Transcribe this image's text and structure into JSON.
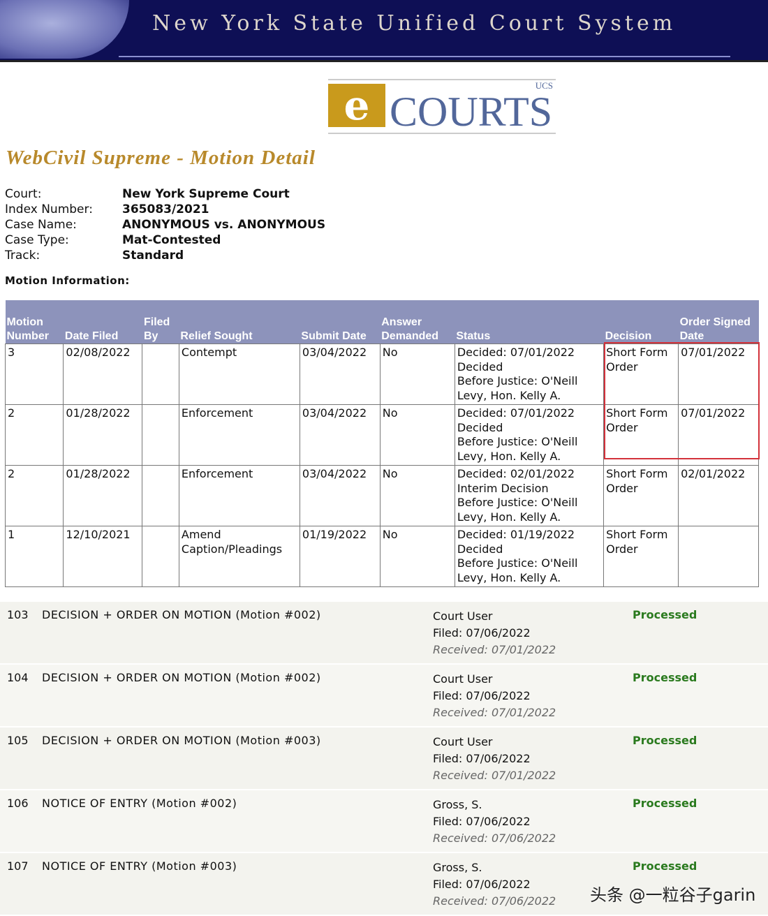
{
  "header": {
    "title": "New York State Unified Court System"
  },
  "logo": {
    "letter": "e",
    "name": "COURTS",
    "sub": "UCS"
  },
  "page_title": "WebCivil Supreme - Motion Detail",
  "case_info": [
    {
      "label": "Court:",
      "value": "New York Supreme Court"
    },
    {
      "label": "Index Number:",
      "value": "365083/2021"
    },
    {
      "label": "Case Name:",
      "value": "ANONYMOUS vs. ANONYMOUS"
    },
    {
      "label": "Case Type:",
      "value": "Mat-Contested"
    },
    {
      "label": "Track:",
      "value": "Standard"
    }
  ],
  "motion_label": "Motion Information:",
  "motion_table": {
    "headers": [
      "Motion Number",
      "Date Filed",
      "Filed By",
      "Relief Sought",
      "Submit Date",
      "Answer Demanded",
      "Status",
      "Decision",
      "Order Signed Date"
    ],
    "rows": [
      [
        "3",
        "02/08/2022",
        "",
        "Contempt",
        "03/04/2022",
        "No",
        "Decided: 07/01/2022\nDecided\nBefore Justice: O'Neill\nLevy, Hon. Kelly A.",
        "Short Form Order",
        "07/01/2022"
      ],
      [
        "2",
        "01/28/2022",
        "",
        "Enforcement",
        "03/04/2022",
        "No",
        "Decided: 07/01/2022\nDecided\nBefore Justice: O'Neill\nLevy, Hon. Kelly A.",
        "Short Form Order",
        "07/01/2022"
      ],
      [
        "2",
        "01/28/2022",
        "",
        "Enforcement",
        "03/04/2022",
        "No",
        "Decided: 02/01/2022\nInterim Decision\nBefore Justice: O'Neill\nLevy, Hon. Kelly A.",
        "Short Form Order",
        "02/01/2022"
      ],
      [
        "1",
        "12/10/2021",
        "",
        "Amend Caption/Pleadings",
        "01/19/2022",
        "No",
        "Decided: 01/19/2022\nDecided\nBefore Justice: O'Neill\nLevy, Hon. Kelly A.",
        "Short Form Order",
        ""
      ]
    ],
    "highlight_color": "#d3323b"
  },
  "documents": [
    {
      "num": "103",
      "desc": "DECISION + ORDER ON MOTION  (Motion #002)",
      "by": "Court User",
      "filed": "Filed: 07/06/2022",
      "received": "Received: 07/01/2022",
      "status": "Processed"
    },
    {
      "num": "104",
      "desc": "DECISION + ORDER ON MOTION  (Motion #002)",
      "by": "Court User",
      "filed": "Filed: 07/06/2022",
      "received": "Received: 07/01/2022",
      "status": "Processed"
    },
    {
      "num": "105",
      "desc": "DECISION + ORDER ON MOTION  (Motion #003)",
      "by": "Court User",
      "filed": "Filed: 07/06/2022",
      "received": "Received: 07/01/2022",
      "status": "Processed"
    },
    {
      "num": "106",
      "desc": "NOTICE OF ENTRY  (Motion #002)",
      "by": "Gross, S.",
      "filed": "Filed: 07/06/2022",
      "received": "Received: 07/06/2022",
      "status": "Processed"
    },
    {
      "num": "107",
      "desc": "NOTICE OF ENTRY  (Motion #003)",
      "by": "Gross, S.",
      "filed": "Filed: 07/06/2022",
      "received": "Received: 07/06/2022",
      "status": "Processed"
    }
  ],
  "watermark": "头条 @一粒谷子garin"
}
